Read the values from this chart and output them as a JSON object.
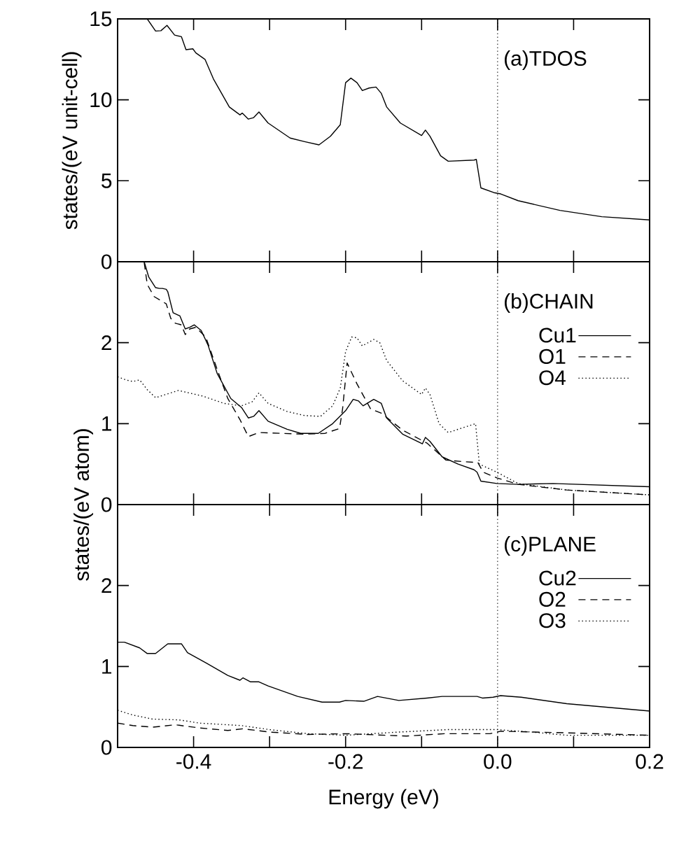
{
  "chart_data": [
    {
      "type": "line",
      "ylabel": "states/(eV unit-cell)",
      "annotations": [
        "(a)TDOS"
      ],
      "xlim": [
        -0.5,
        0.2
      ],
      "ylim": [
        0,
        15
      ],
      "xticks": [
        {
          "value": -0.4,
          "label": null
        },
        {
          "value": -0.3,
          "label": null
        },
        {
          "value": -0.2,
          "label": null
        },
        {
          "value": -0.1,
          "label": null
        },
        {
          "value": 0,
          "label": null
        },
        {
          "value": 0.1,
          "label": null
        }
      ],
      "yticks": [
        0,
        5,
        10,
        15
      ],
      "tick_labels": "y",
      "grid": false,
      "legend": false,
      "marker": "none",
      "ref_lines": [
        {
          "axis": "x",
          "value": 0,
          "color": "#000000",
          "line_style": "dotted"
        }
      ],
      "series": [
        {
          "color": "#000000",
          "line_style": "solid",
          "x": [
            -0.461,
            -0.45,
            -0.443,
            -0.435,
            -0.425,
            -0.416,
            -0.41,
            -0.401,
            -0.397,
            -0.385,
            -0.374,
            -0.353,
            -0.339,
            -0.336,
            -0.328,
            -0.321,
            -0.314,
            -0.302,
            -0.273,
            -0.254,
            -0.235,
            -0.22,
            -0.207,
            -0.2,
            -0.193,
            -0.185,
            -0.178,
            -0.169,
            -0.16,
            -0.153,
            -0.146,
            -0.128,
            -0.1,
            -0.095,
            -0.089,
            -0.075,
            -0.065,
            -0.031,
            -0.028,
            -0.022,
            -0.005,
            0.004,
            0.027,
            0.082,
            0.137,
            0.2
          ],
          "values": [
            15.0,
            14.25,
            14.27,
            14.6,
            14.0,
            13.9,
            13.1,
            13.15,
            12.9,
            12.5,
            11.3,
            9.56,
            9.07,
            9.18,
            8.81,
            8.9,
            9.25,
            8.57,
            7.64,
            7.42,
            7.22,
            7.75,
            8.46,
            11.06,
            11.34,
            11.06,
            10.57,
            10.73,
            10.79,
            10.4,
            9.56,
            8.57,
            7.8,
            8.13,
            7.75,
            6.54,
            6.21,
            6.28,
            6.32,
            4.56,
            4.27,
            4.19,
            3.77,
            3.17,
            2.78,
            2.58
          ]
        }
      ]
    },
    {
      "type": "line",
      "ylabel": "states/(eV atom)",
      "annotations": [
        "(b)CHAIN"
      ],
      "xlim": [
        -0.5,
        0.2
      ],
      "ylim": [
        0,
        3
      ],
      "xticks": [
        {
          "value": -0.4,
          "label": null
        },
        {
          "value": -0.3,
          "label": null
        },
        {
          "value": -0.2,
          "label": null
        },
        {
          "value": -0.1,
          "label": null
        },
        {
          "value": 0,
          "label": null
        },
        {
          "value": 0.1,
          "label": null
        }
      ],
      "yticks": [
        0,
        1,
        2
      ],
      "tick_labels": "y",
      "grid": false,
      "legend": "top right",
      "marker": "none",
      "ref_lines": [
        {
          "axis": "x",
          "value": 0,
          "color": "#000000",
          "line_style": "dotted"
        }
      ],
      "series": [
        {
          "name": "Cu1",
          "color": "#000000",
          "line_style": "solid",
          "x": [
            -0.465,
            -0.459,
            -0.45,
            -0.445,
            -0.441,
            -0.436,
            -0.434,
            -0.427,
            -0.418,
            -0.411,
            -0.405,
            -0.399,
            -0.39,
            -0.381,
            -0.369,
            -0.351,
            -0.337,
            -0.328,
            -0.321,
            -0.314,
            -0.302,
            -0.277,
            -0.259,
            -0.236,
            -0.217,
            -0.2,
            -0.19,
            -0.183,
            -0.177,
            -0.163,
            -0.153,
            -0.146,
            -0.125,
            -0.099,
            -0.095,
            -0.089,
            -0.073,
            -0.052,
            -0.031,
            -0.027,
            -0.022,
            -0.001,
            0.027,
            0.073,
            0.2
          ],
          "values": [
            3.0,
            2.81,
            2.68,
            2.67,
            2.67,
            2.66,
            2.63,
            2.37,
            2.33,
            2.17,
            2.19,
            2.22,
            2.15,
            1.97,
            1.62,
            1.31,
            1.2,
            1.07,
            1.09,
            1.16,
            1.03,
            0.93,
            0.88,
            0.88,
            1.0,
            1.16,
            1.3,
            1.28,
            1.22,
            1.3,
            1.25,
            1.07,
            0.87,
            0.75,
            0.83,
            0.78,
            0.59,
            0.5,
            0.43,
            0.4,
            0.29,
            0.26,
            0.25,
            0.26,
            0.22
          ]
        },
        {
          "name": "O1",
          "color": "#000000",
          "line_style": "dashed",
          "x": [
            -0.465,
            -0.461,
            -0.452,
            -0.436,
            -0.43,
            -0.424,
            -0.416,
            -0.411,
            -0.405,
            -0.397,
            -0.384,
            -0.369,
            -0.355,
            -0.339,
            -0.328,
            -0.314,
            -0.286,
            -0.254,
            -0.227,
            -0.208,
            -0.204,
            -0.198,
            -0.185,
            -0.167,
            -0.153,
            -0.125,
            -0.093,
            -0.068,
            -0.045,
            -0.026,
            -0.019,
            -0.001,
            0.027,
            0.091,
            0.2
          ],
          "values": [
            2.99,
            2.72,
            2.57,
            2.48,
            2.3,
            2.24,
            2.22,
            2.1,
            2.17,
            2.19,
            2.07,
            1.67,
            1.31,
            1.05,
            0.84,
            0.89,
            0.88,
            0.87,
            0.88,
            0.94,
            1.18,
            1.75,
            1.49,
            1.18,
            1.13,
            0.92,
            0.76,
            0.55,
            0.53,
            0.52,
            0.4,
            0.33,
            0.25,
            0.18,
            0.12
          ]
        },
        {
          "name": "O4",
          "color": "#000000",
          "line_style": "dotted",
          "x": [
            -0.5,
            -0.489,
            -0.48,
            -0.471,
            -0.461,
            -0.45,
            -0.42,
            -0.388,
            -0.36,
            -0.337,
            -0.323,
            -0.314,
            -0.302,
            -0.277,
            -0.254,
            -0.233,
            -0.217,
            -0.207,
            -0.2,
            -0.192,
            -0.185,
            -0.178,
            -0.163,
            -0.155,
            -0.146,
            -0.125,
            -0.1,
            -0.095,
            -0.089,
            -0.077,
            -0.065,
            -0.029,
            -0.024,
            -0.001,
            0.027,
            0.091,
            0.2
          ],
          "values": [
            1.58,
            1.54,
            1.52,
            1.54,
            1.42,
            1.32,
            1.41,
            1.34,
            1.25,
            1.22,
            1.27,
            1.38,
            1.25,
            1.15,
            1.1,
            1.09,
            1.22,
            1.44,
            1.89,
            2.07,
            2.06,
            1.96,
            2.04,
            2.0,
            1.78,
            1.53,
            1.36,
            1.44,
            1.36,
            1.0,
            0.89,
            1.0,
            0.5,
            0.4,
            0.26,
            0.18,
            0.12
          ]
        }
      ]
    },
    {
      "type": "line",
      "xlabel": "Energy (eV)",
      "annotations": [
        "(c)PLANE"
      ],
      "xlim": [
        -0.5,
        0.2
      ],
      "ylim": [
        0,
        3
      ],
      "xticks": [
        -0.4,
        {
          "value": -0.3,
          "label": null
        },
        -0.2,
        {
          "value": -0.1,
          "label": null
        },
        {
          "value": 0,
          "label": "0.0"
        },
        {
          "value": 0.1,
          "label": null
        },
        0.2
      ],
      "yticks": [
        0,
        1,
        2
      ],
      "grid": false,
      "legend": "top right",
      "marker": "none",
      "ref_lines": [
        {
          "axis": "x",
          "value": 0,
          "color": "#000000",
          "line_style": "dotted"
        }
      ],
      "series": [
        {
          "name": "Cu2",
          "color": "#000000",
          "line_style": "solid",
          "x": [
            -0.5,
            -0.491,
            -0.471,
            -0.461,
            -0.45,
            -0.434,
            -0.416,
            -0.408,
            -0.383,
            -0.355,
            -0.339,
            -0.335,
            -0.325,
            -0.314,
            -0.302,
            -0.263,
            -0.231,
            -0.208,
            -0.2,
            -0.176,
            -0.158,
            -0.13,
            -0.093,
            -0.073,
            -0.027,
            -0.02,
            -0.006,
            0.004,
            0.031,
            0.091,
            0.2
          ],
          "values": [
            1.3,
            1.3,
            1.23,
            1.16,
            1.16,
            1.28,
            1.28,
            1.17,
            1.04,
            0.89,
            0.83,
            0.86,
            0.81,
            0.81,
            0.76,
            0.63,
            0.56,
            0.56,
            0.58,
            0.57,
            0.63,
            0.58,
            0.61,
            0.63,
            0.63,
            0.61,
            0.62,
            0.64,
            0.62,
            0.54,
            0.45
          ]
        },
        {
          "name": "O2",
          "color": "#000000",
          "line_style": "dashed",
          "x": [
            -0.5,
            -0.48,
            -0.454,
            -0.424,
            -0.392,
            -0.355,
            -0.335,
            -0.3,
            -0.25,
            -0.2,
            -0.12,
            -0.07,
            -0.01,
            0.004,
            0.091,
            0.2
          ],
          "values": [
            0.3,
            0.27,
            0.25,
            0.28,
            0.24,
            0.21,
            0.23,
            0.19,
            0.16,
            0.17,
            0.14,
            0.17,
            0.17,
            0.2,
            0.18,
            0.15
          ]
        },
        {
          "name": "O3",
          "color": "#000000",
          "line_style": "dotted",
          "x": [
            -0.5,
            -0.48,
            -0.454,
            -0.419,
            -0.392,
            -0.337,
            -0.3,
            -0.25,
            -0.2,
            -0.13,
            -0.065,
            -0.001,
            0.045,
            0.091,
            0.2
          ],
          "values": [
            0.46,
            0.4,
            0.35,
            0.34,
            0.3,
            0.27,
            0.22,
            0.17,
            0.15,
            0.19,
            0.22,
            0.22,
            0.19,
            0.15,
            0.15
          ]
        }
      ]
    }
  ]
}
